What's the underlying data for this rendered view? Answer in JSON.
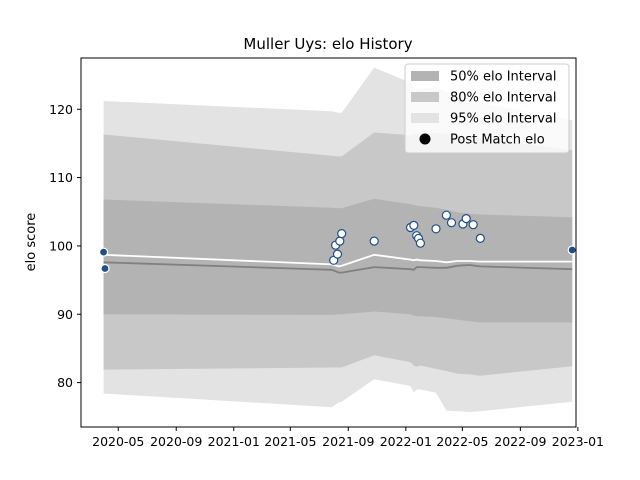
{
  "chart_data": {
    "type": "line",
    "title": "Muller Uys: elo History",
    "xlabel": "",
    "ylabel": "elo score",
    "xlim": [
      "2020-02-12",
      "2022-12-28"
    ],
    "ylim": [
      73.5,
      127.5
    ],
    "x_ticks": [
      "2020-05",
      "2020-09",
      "2021-01",
      "2021-05",
      "2021-09",
      "2022-01",
      "2022-05",
      "2022-09",
      "2023-01"
    ],
    "x_tick_dates": [
      "2020-05-01",
      "2020-09-01",
      "2021-01-01",
      "2021-05-01",
      "2021-09-01",
      "2022-01-01",
      "2022-05-01",
      "2022-09-01",
      "2023-01-01"
    ],
    "y_ticks": [
      80,
      90,
      100,
      110,
      120
    ],
    "grid": false,
    "legend": {
      "position": "top-right",
      "entries": [
        {
          "label": "50% elo Interval",
          "kind": "band",
          "color": "#b3b3b3"
        },
        {
          "label": "80% elo Interval",
          "kind": "band",
          "color": "#c8c8c8"
        },
        {
          "label": "95% elo Interval",
          "kind": "band",
          "color": "#e3e3e3"
        },
        {
          "label": "Post Match elo",
          "kind": "marker",
          "color": "#000000"
        }
      ]
    },
    "colors": {
      "band95": "#e3e3e3",
      "band80": "#c8c8c8",
      "band50": "#b3b3b3",
      "mean_line": "#ffffff",
      "median_line": "#808080",
      "marker_fill": "#ffffff",
      "marker_edge": "#1f4e8a",
      "first_marker_fill": "#1f4e8a"
    },
    "bands": {
      "dates": [
        "2020-03-31",
        "2021-07-28",
        "2021-08-12",
        "2021-08-18",
        "2021-10-26",
        "2022-01-11",
        "2022-01-18",
        "2022-01-24",
        "2022-02-01",
        "2022-03-06",
        "2022-03-28",
        "2022-04-21",
        "2022-05-16",
        "2022-06-08",
        "2022-12-20"
      ],
      "p2_5": [
        78.4,
        76.4,
        77.1,
        77.2,
        80.5,
        79.5,
        78.5,
        79.0,
        79.0,
        78.5,
        75.9,
        75.8,
        75.7,
        75.8,
        77.2
      ],
      "p10": [
        81.9,
        82.2,
        82.2,
        82.2,
        84.0,
        83.0,
        82.5,
        82.3,
        82.5,
        82.0,
        81.7,
        81.3,
        81.2,
        81.0,
        82.4
      ],
      "p25": [
        90.0,
        89.9,
        90.0,
        90.0,
        90.4,
        90.0,
        89.8,
        89.7,
        89.7,
        89.6,
        89.4,
        89.2,
        89.0,
        88.8,
        88.8
      ],
      "p50": [
        97.6,
        96.5,
        96.1,
        96.1,
        96.9,
        96.6,
        96.5,
        96.9,
        96.9,
        96.8,
        96.8,
        97.1,
        97.2,
        97.0,
        96.6
      ],
      "mean": [
        98.7,
        97.3,
        97.0,
        97.1,
        98.7,
        98.0,
        97.9,
        98.0,
        97.9,
        97.8,
        97.6,
        97.8,
        97.8,
        97.7,
        97.7
      ],
      "p75": [
        106.8,
        105.6,
        105.5,
        105.5,
        106.9,
        106.1,
        106.0,
        105.9,
        105.8,
        105.6,
        105.3,
        104.9,
        104.7,
        104.6,
        104.2
      ],
      "p90": [
        116.3,
        113.2,
        113.1,
        113.1,
        116.6,
        116.2,
        116.4,
        116.4,
        116.5,
        116.5,
        116.4,
        116.1,
        116.0,
        115.8,
        114.0
      ],
      "p97_5": [
        121.2,
        119.7,
        119.5,
        119.5,
        126.1,
        123.9,
        123.0,
        122.9,
        123.0,
        123.3,
        122.5,
        121.7,
        121.5,
        120.9,
        118.4
      ]
    },
    "points": [
      {
        "date": "2020-03-31",
        "elo": 99.1
      },
      {
        "date": "2020-04-03",
        "elo": 96.7
      },
      {
        "date": "2021-08-01",
        "elo": 97.9
      },
      {
        "date": "2021-08-05",
        "elo": 100.1
      },
      {
        "date": "2021-08-09",
        "elo": 98.8
      },
      {
        "date": "2021-08-14",
        "elo": 100.7
      },
      {
        "date": "2021-08-18",
        "elo": 101.8
      },
      {
        "date": "2021-10-26",
        "elo": 100.7
      },
      {
        "date": "2022-01-11",
        "elo": 102.7
      },
      {
        "date": "2022-01-18",
        "elo": 103.0
      },
      {
        "date": "2022-01-24",
        "elo": 101.5
      },
      {
        "date": "2022-01-28",
        "elo": 101.1
      },
      {
        "date": "2022-02-01",
        "elo": 100.4
      },
      {
        "date": "2022-03-06",
        "elo": 102.5
      },
      {
        "date": "2022-03-28",
        "elo": 104.5
      },
      {
        "date": "2022-04-08",
        "elo": 103.4
      },
      {
        "date": "2022-05-02",
        "elo": 103.2
      },
      {
        "date": "2022-05-09",
        "elo": 104.0
      },
      {
        "date": "2022-05-24",
        "elo": 103.1
      },
      {
        "date": "2022-06-08",
        "elo": 101.1
      },
      {
        "date": "2022-12-20",
        "elo": 99.4
      }
    ]
  }
}
